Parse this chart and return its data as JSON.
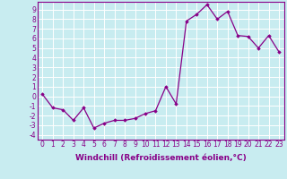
{
  "x": [
    0,
    1,
    2,
    3,
    4,
    5,
    6,
    7,
    8,
    9,
    10,
    11,
    12,
    13,
    14,
    15,
    16,
    17,
    18,
    19,
    20,
    21,
    22,
    23
  ],
  "y": [
    0.2,
    -1.2,
    -1.4,
    -2.5,
    -1.2,
    -3.3,
    -2.8,
    -2.5,
    -2.5,
    -2.3,
    -1.8,
    -1.5,
    1.0,
    -0.8,
    7.8,
    8.5,
    9.5,
    8.0,
    8.8,
    6.3,
    6.2,
    5.0,
    6.3,
    4.6
  ],
  "line_color": "#880088",
  "marker": "D",
  "markersize": 1.8,
  "linewidth": 0.9,
  "bg_color": "#c8ecf0",
  "grid_color": "#ffffff",
  "xlabel": "Windchill (Refroidissement éolien,°C)",
  "xlim": [
    -0.5,
    23.5
  ],
  "ylim": [
    -4.5,
    9.8
  ],
  "xticks": [
    0,
    1,
    2,
    3,
    4,
    5,
    6,
    7,
    8,
    9,
    10,
    11,
    12,
    13,
    14,
    15,
    16,
    17,
    18,
    19,
    20,
    21,
    22,
    23
  ],
  "yticks": [
    -4,
    -3,
    -2,
    -1,
    0,
    1,
    2,
    3,
    4,
    5,
    6,
    7,
    8,
    9
  ],
  "xlabel_fontsize": 6.5,
  "tick_fontsize": 5.5,
  "tick_color": "#880088",
  "label_color": "#880088",
  "spine_color": "#880088"
}
